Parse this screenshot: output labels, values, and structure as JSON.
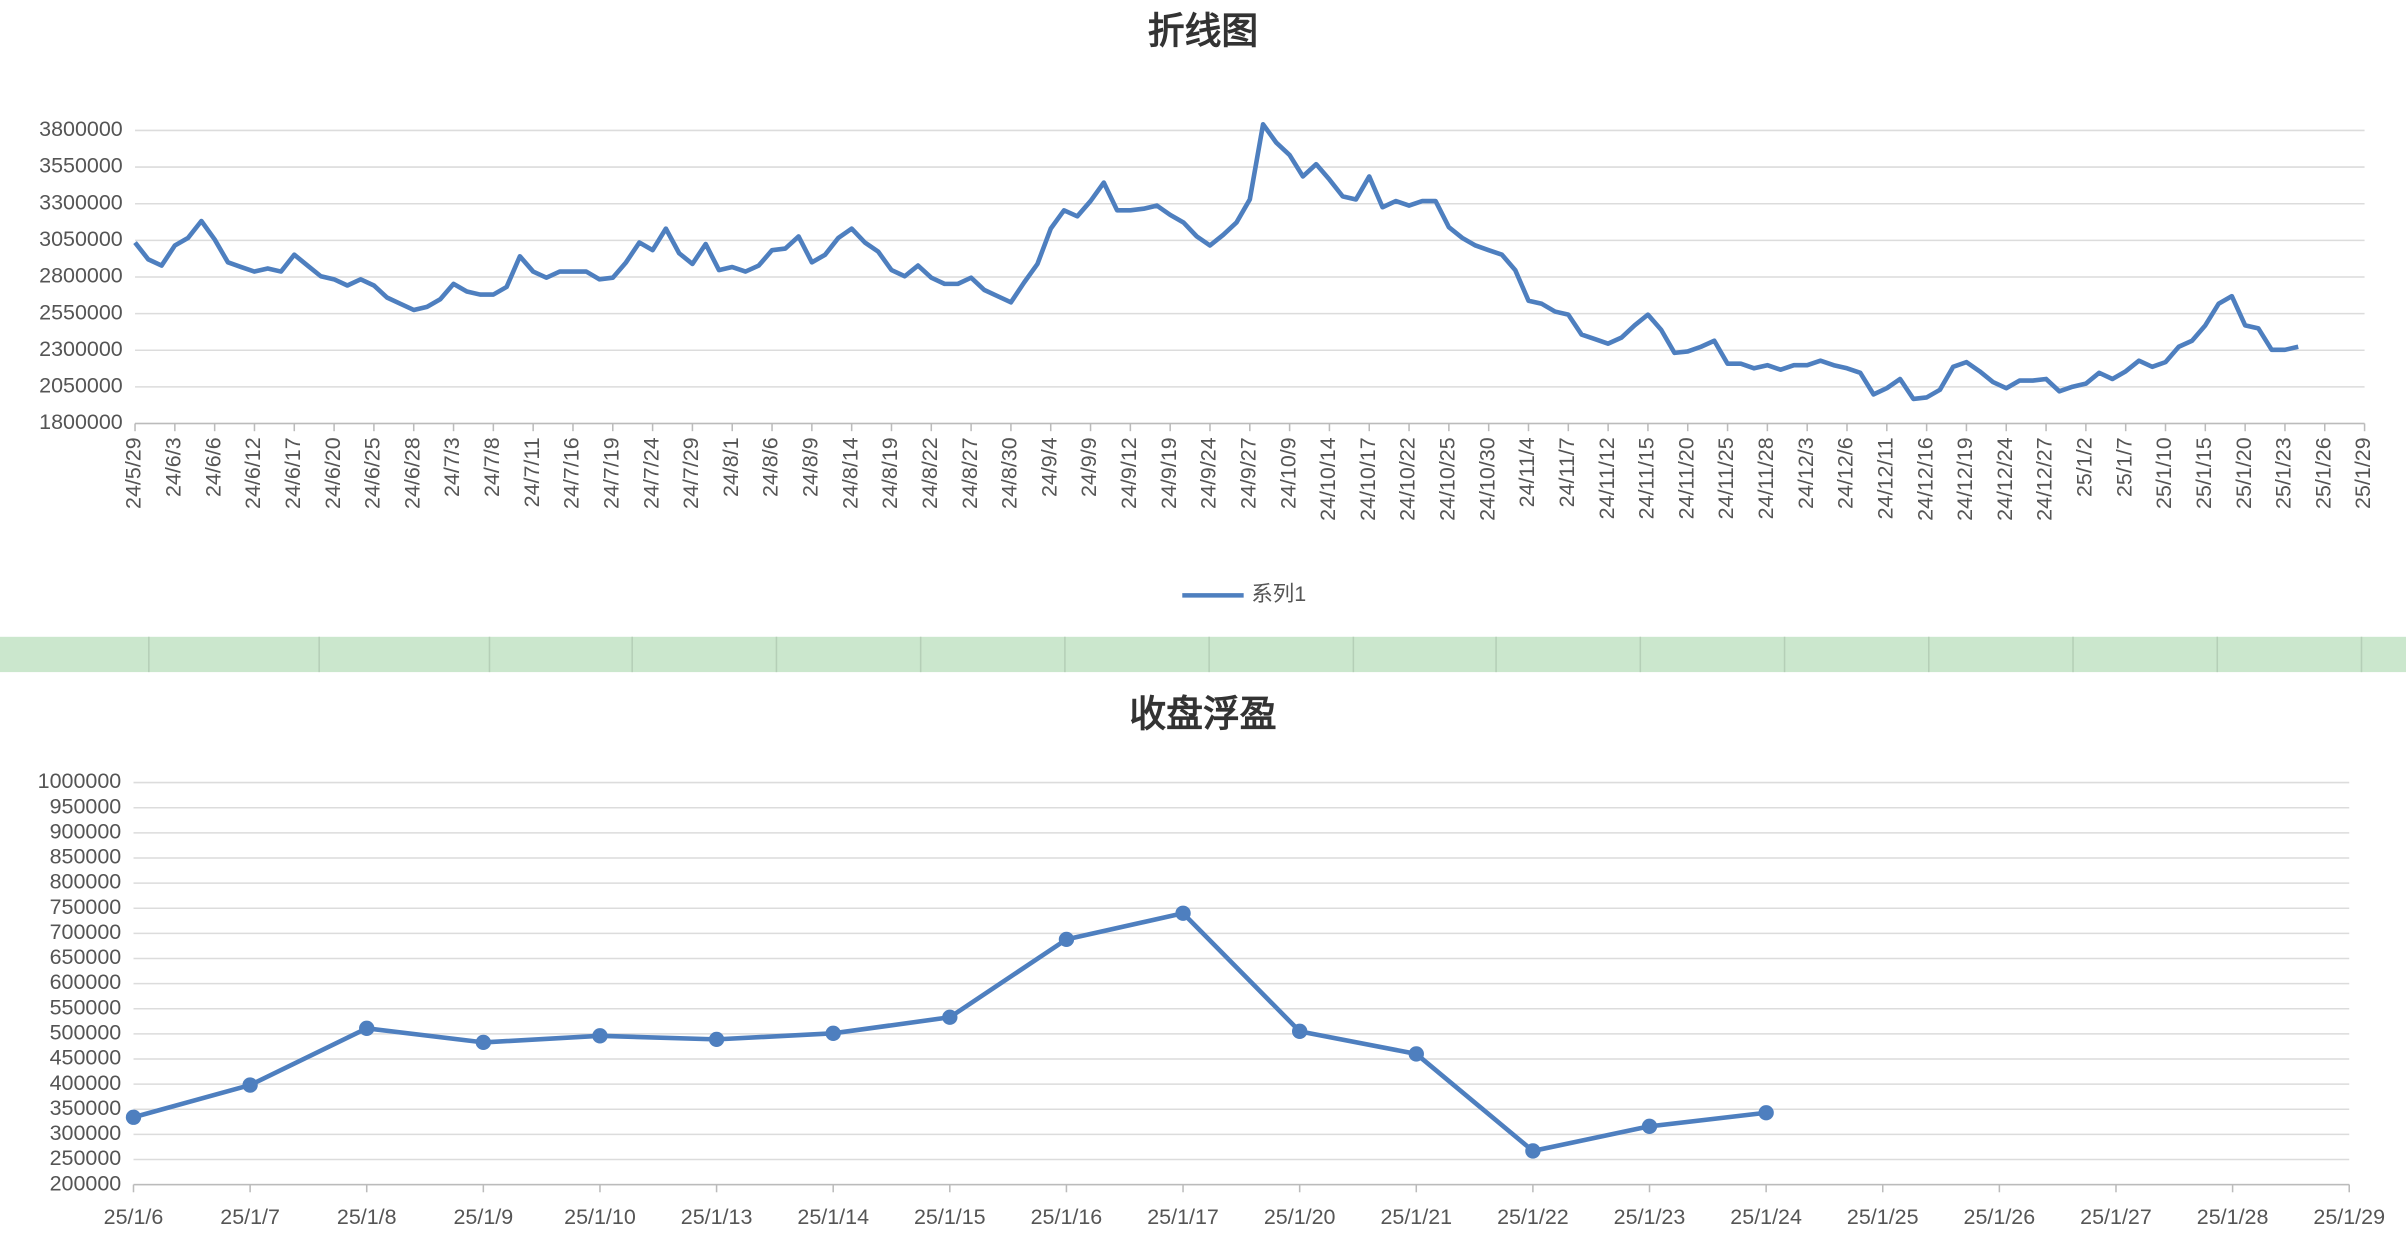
{
  "chart_data": [
    {
      "type": "line",
      "title": "折线图",
      "categories": [
        "24/5/29",
        null,
        null,
        "24/6/3",
        null,
        null,
        "24/6/6",
        null,
        null,
        "24/6/12",
        null,
        null,
        "24/6/17",
        null,
        null,
        "24/6/20",
        null,
        null,
        "24/6/25",
        null,
        null,
        "24/6/28",
        null,
        null,
        "24/7/3",
        null,
        null,
        "24/7/8",
        null,
        null,
        "24/7/11",
        null,
        null,
        "24/7/16",
        null,
        null,
        "24/7/19",
        null,
        null,
        "24/7/24",
        null,
        null,
        "24/7/29",
        null,
        null,
        "24/8/1",
        null,
        null,
        "24/8/6",
        null,
        null,
        "24/8/9",
        null,
        null,
        "24/8/14",
        null,
        null,
        "24/8/19",
        null,
        null,
        "24/8/22",
        null,
        null,
        "24/8/27",
        null,
        null,
        "24/8/30",
        null,
        null,
        "24/9/4",
        null,
        null,
        "24/9/9",
        null,
        null,
        "24/9/12",
        null,
        null,
        "24/9/19",
        null,
        null,
        "24/9/24",
        null,
        null,
        "24/9/27",
        null,
        null,
        "24/10/9",
        null,
        null,
        "24/10/14",
        null,
        null,
        "24/10/17",
        null,
        null,
        "24/10/22",
        null,
        null,
        "24/10/25",
        null,
        null,
        "24/10/30",
        null,
        null,
        "24/11/4",
        null,
        null,
        "24/11/7",
        null,
        null,
        "24/11/12",
        null,
        null,
        "24/11/15",
        null,
        null,
        "24/11/20",
        null,
        null,
        "24/11/25",
        null,
        null,
        "24/11/28",
        null,
        null,
        "24/12/3",
        null,
        null,
        "24/12/6",
        null,
        null,
        "24/12/11",
        null,
        null,
        "24/12/16",
        null,
        null,
        "24/12/19",
        null,
        null,
        "24/12/24",
        null,
        null,
        "24/12/27",
        null,
        null,
        "25/1/2",
        null,
        null,
        "25/1/7",
        null,
        null,
        "25/1/10",
        null,
        null,
        "25/1/15",
        null,
        null,
        "25/1/20",
        null,
        null,
        "25/1/23",
        null,
        null,
        "25/1/26",
        null,
        null,
        "25/1/29"
      ],
      "series": [
        {
          "name": "系列1",
          "color": "#4e7fbf",
          "values": [
            3035000,
            2920000,
            2878000,
            3015000,
            3067000,
            3182000,
            3056000,
            2900000,
            2868000,
            2837000,
            2858000,
            2837000,
            2952000,
            2878000,
            2805000,
            2784000,
            2742000,
            2784000,
            2742000,
            2659000,
            2617000,
            2575000,
            2596000,
            2648000,
            2753000,
            2701000,
            2680000,
            2680000,
            2732000,
            2941000,
            2837000,
            2795000,
            2837000,
            2837000,
            2837000,
            2784000,
            2795000,
            2900000,
            3035000,
            2983000,
            3130000,
            2962000,
            2889000,
            3025000,
            2847000,
            2868000,
            2837000,
            2878000,
            2983000,
            2994000,
            3077000,
            2900000,
            2952000,
            3067000,
            3130000,
            3035000,
            2973000,
            2847000,
            2805000,
            2878000,
            2795000,
            2753000,
            2753000,
            2795000,
            2711000,
            2669000,
            2627000,
            2763000,
            2889000,
            3130000,
            3255000,
            3214000,
            3318000,
            3444000,
            3255000,
            3255000,
            3266000,
            3287000,
            3224000,
            3172000,
            3077000,
            3015000,
            3088000,
            3172000,
            3329000,
            3842000,
            3716000,
            3632000,
            3486000,
            3570000,
            3465000,
            3350000,
            3329000,
            3486000,
            3276000,
            3318000,
            3287000,
            3318000,
            3318000,
            3140000,
            3067000,
            3015000,
            2983000,
            2952000,
            2847000,
            2638000,
            2617000,
            2564000,
            2543000,
            2407000,
            2376000,
            2345000,
            2386000,
            2470000,
            2543000,
            2439000,
            2282000,
            2292000,
            2324000,
            2365000,
            2208000,
            2208000,
            2177000,
            2198000,
            2167000,
            2198000,
            2198000,
            2229000,
            2198000,
            2177000,
            2146000,
            1999000,
            2041000,
            2104000,
            1968000,
            1978000,
            2030000,
            2187000,
            2219000,
            2156000,
            2083000,
            2041000,
            2093000,
            2093000,
            2104000,
            2020000,
            2051000,
            2072000,
            2146000,
            2104000,
            2156000,
            2229000,
            2187000,
            2219000,
            2324000,
            2365000,
            2470000,
            2617000,
            2669000,
            2470000,
            2449000,
            2303000,
            2303000,
            2324000,
            null,
            null,
            null,
            null,
            null
          ]
        }
      ],
      "ylim": [
        1800000,
        3800000
      ],
      "yticks": [
        1800000,
        2050000,
        2300000,
        2550000,
        2800000,
        3050000,
        3300000,
        3550000,
        3800000
      ],
      "grid": true,
      "legend": "bottom",
      "markers": false
    },
    {
      "type": "line",
      "title": "收盘浮盈",
      "categories": [
        "25/1/6",
        "25/1/7",
        "25/1/8",
        "25/1/9",
        "25/1/10",
        "25/1/13",
        "25/1/14",
        "25/1/15",
        "25/1/16",
        "25/1/17",
        "25/1/20",
        "25/1/21",
        "25/1/22",
        "25/1/23",
        "25/1/24",
        "25/1/25",
        "25/1/26",
        "25/1/27",
        "25/1/28",
        "25/1/29"
      ],
      "values": [
        334000,
        398000,
        511000,
        483000,
        496000,
        489000,
        501000,
        533000,
        688000,
        740000,
        505000,
        460000,
        267000,
        316000,
        343000,
        null,
        null,
        null,
        null,
        null
      ],
      "color": "#4e7fbf",
      "ylim": [
        200000,
        1000000
      ],
      "yticks": [
        200000,
        250000,
        300000,
        350000,
        400000,
        450000,
        500000,
        550000,
        600000,
        650000,
        700000,
        750000,
        800000,
        850000,
        900000,
        950000,
        1000000
      ],
      "grid": true,
      "markers": true
    }
  ]
}
